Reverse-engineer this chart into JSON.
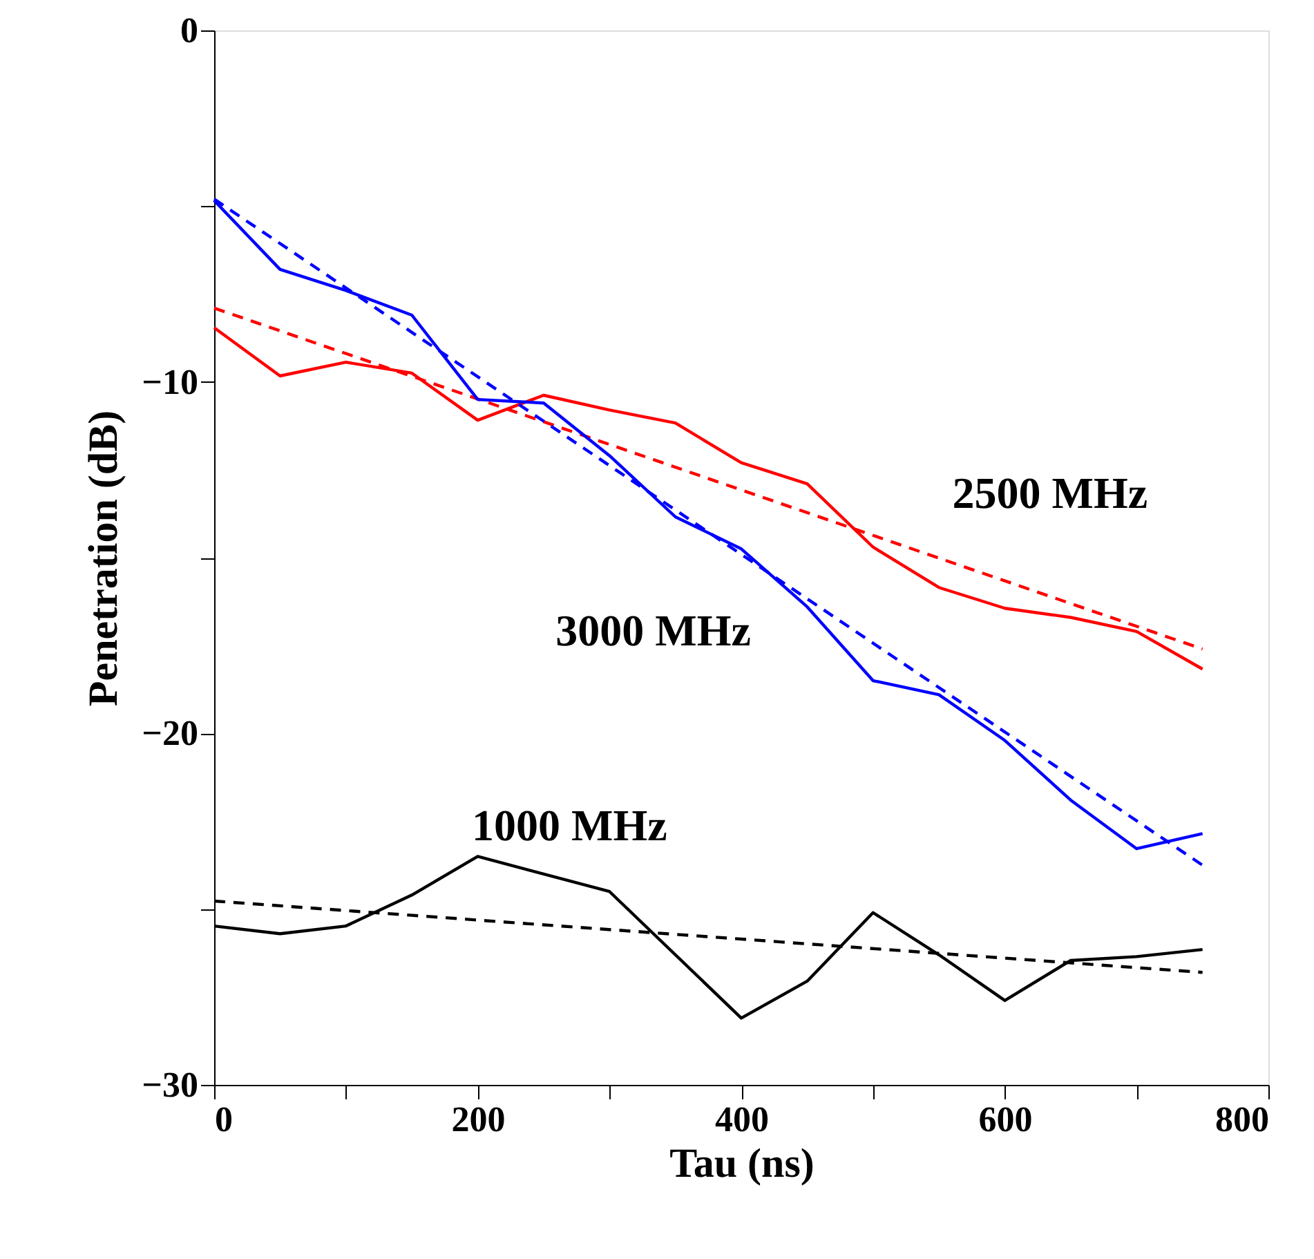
{
  "chart_data": {
    "type": "line",
    "xlabel": "Tau (ns)",
    "ylabel": "Penetration (dB)",
    "xlim": [
      0,
      800
    ],
    "ylim": [
      -30,
      0
    ],
    "xticks": [
      0,
      {
        "value": 100,
        "label": null
      },
      200,
      {
        "value": 300,
        "label": null
      },
      400,
      {
        "value": 500,
        "label": null
      },
      600,
      {
        "value": 700,
        "label": null
      },
      800
    ],
    "yticks": [
      -30,
      {
        "value": -25,
        "label": null
      },
      -20,
      {
        "value": -15,
        "label": null
      },
      -10,
      {
        "value": -5,
        "label": null
      },
      0
    ],
    "grid": false,
    "legend": false,
    "marker": "none",
    "series": [
      {
        "name": "2500 MHz",
        "color": "#ff0000",
        "line_style": "solid",
        "x": [
          0,
          50,
          100,
          150,
          200,
          250,
          300,
          350,
          400,
          450,
          500,
          550,
          600,
          650,
          700,
          750
        ],
        "values": [
          -8.46,
          -9.83,
          -9.44,
          -9.75,
          -11.09,
          -10.38,
          -10.8,
          -11.17,
          -12.3,
          -12.9,
          -14.7,
          -15.85,
          -16.44,
          -16.7,
          -17.1,
          -18.17
        ]
      },
      {
        "color": "#ff0000",
        "line_style": "dashed",
        "x": [
          0,
          750
        ],
        "values": [
          -7.9,
          -17.6
        ]
      },
      {
        "name": "3000 MHz",
        "color": "#0000ff",
        "line_style": "solid",
        "x": [
          0,
          50,
          100,
          150,
          200,
          250,
          300,
          350,
          400,
          450,
          500,
          550,
          600,
          650,
          700,
          750
        ],
        "values": [
          -4.84,
          -6.8,
          -7.4,
          -8.1,
          -10.5,
          -10.6,
          -12.1,
          -13.84,
          -14.75,
          -16.4,
          -18.5,
          -18.9,
          -20.2,
          -21.9,
          -23.28,
          -22.85
        ]
      },
      {
        "color": "#0000ff",
        "line_style": "dashed",
        "x": [
          0,
          750
        ],
        "values": [
          -4.8,
          -23.75
        ]
      },
      {
        "name": "1000 MHz",
        "color": "#000000",
        "line_style": "solid",
        "x": [
          0,
          50,
          100,
          150,
          200,
          300,
          400,
          450,
          500,
          550,
          600,
          650,
          700,
          750
        ],
        "values": [
          -25.48,
          -25.7,
          -25.48,
          -24.6,
          -23.5,
          -24.5,
          -28.1,
          -27.05,
          -25.1,
          -26.3,
          -27.6,
          -26.46,
          -26.35,
          -26.15
        ]
      },
      {
        "color": "#000000",
        "line_style": "dashed",
        "x": [
          0,
          750
        ],
        "values": [
          -24.77,
          -26.8
        ]
      }
    ]
  }
}
